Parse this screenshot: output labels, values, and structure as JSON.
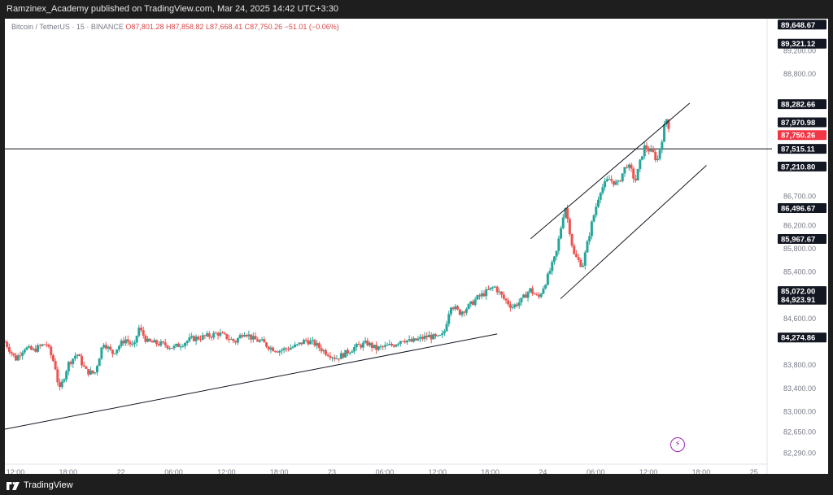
{
  "header": {
    "attribution": "Ramzinex_Academy published on TradingView.com, Mar 24, 2025 14:42 UTC+3:30"
  },
  "footer": {
    "brand": "TradingView",
    "logo_icon": "tradingview-logo-icon"
  },
  "symbol": {
    "name": "Bitcoin / TetherUS · 15 · BINANCE",
    "open": "O87,801.28",
    "high": "H87,858.82",
    "low": "L87,668.41",
    "close": "C87,750.26",
    "change": "−51.01 (−0.06%)"
  },
  "bolt_icon": "lightning-icon",
  "colors": {
    "up": "#26a69a",
    "down": "#ef5350",
    "last_price": "#f23645",
    "label_bg": "#131722",
    "text": "#787b86"
  },
  "chart_data": {
    "type": "candlestick",
    "symbol": "BTCUSDT",
    "timeframe": "15",
    "exchange": "BINANCE",
    "x_ticks": [
      "12:00",
      "18:00",
      "22",
      "06:00",
      "12:00",
      "18:00",
      "23",
      "06:00",
      "12:00",
      "18:00",
      "24",
      "06:00",
      "12:00",
      "18:00",
      "25"
    ],
    "x_tick_hours": [
      12,
      18,
      24,
      30,
      36,
      42,
      48,
      54,
      60,
      66,
      72,
      78,
      84,
      90,
      96
    ],
    "y_ticks": [
      82290,
      82650,
      83000,
      83400,
      83800,
      84600,
      85400,
      85800,
      86200,
      86700,
      88800,
      89200
    ],
    "price_labels": [
      {
        "value": 89648.67,
        "text": "89,648.67"
      },
      {
        "value": 89321.12,
        "text": "89,321.12"
      },
      {
        "value": 88282.66,
        "text": "88,282.66"
      },
      {
        "value": 87970.98,
        "text": "87,970.98"
      },
      {
        "value": 87750.26,
        "text": "87,750.26",
        "last": true
      },
      {
        "value": 87515.11,
        "text": "87,515.11"
      },
      {
        "value": 87210.8,
        "text": "87,210.80"
      },
      {
        "value": 86496.67,
        "text": "86,496.67"
      },
      {
        "value": 85967.67,
        "text": "85,967.67"
      },
      {
        "value": 85072.0,
        "text": "85,072.00"
      },
      {
        "value": 84923.91,
        "text": "84,923.91"
      },
      {
        "value": 84274.86,
        "text": "84,274.86"
      }
    ],
    "ylim": [
      82100,
      89750
    ],
    "xlim_hours": [
      10.8,
      97.5
    ],
    "horizontal_line": 87515.11,
    "trendlines": [
      {
        "name": "support",
        "from": [
          10.8,
          82700
        ],
        "to": [
          66.8,
          84335
        ]
      },
      {
        "name": "channel-upper",
        "from": [
          70.6,
          85970
        ],
        "to": [
          88.7,
          88300
        ]
      },
      {
        "name": "channel-lower",
        "from": [
          74.0,
          84940
        ],
        "to": [
          90.6,
          87230
        ]
      }
    ],
    "price_path": [
      [
        10.8,
        84200
      ],
      [
        12,
        83900
      ],
      [
        13,
        84100
      ],
      [
        14,
        84050
      ],
      [
        15.5,
        84180
      ],
      [
        16.5,
        83800
      ],
      [
        17,
        83350
      ],
      [
        18,
        83820
      ],
      [
        19,
        84000
      ],
      [
        20,
        83700
      ],
      [
        21,
        83650
      ],
      [
        22,
        84200
      ],
      [
        23,
        84000
      ],
      [
        24.5,
        84250
      ],
      [
        25.5,
        84100
      ],
      [
        26,
        84450
      ],
      [
        27,
        84200
      ],
      [
        29,
        84150
      ],
      [
        30,
        84100
      ],
      [
        32,
        84250
      ],
      [
        34,
        84300
      ],
      [
        35,
        84350
      ],
      [
        36,
        84280
      ],
      [
        37,
        84200
      ],
      [
        38,
        84380
      ],
      [
        39,
        84250
      ],
      [
        40,
        84200
      ],
      [
        41,
        84100
      ],
      [
        42,
        84050
      ],
      [
        44,
        84130
      ],
      [
        45,
        84230
      ],
      [
        46,
        84170
      ],
      [
        47,
        84050
      ],
      [
        48.5,
        83920
      ],
      [
        49.5,
        84000
      ],
      [
        50.5,
        84100
      ],
      [
        52,
        84180
      ],
      [
        53,
        84080
      ],
      [
        55,
        84150
      ],
      [
        56,
        84250
      ],
      [
        57,
        84200
      ],
      [
        59,
        84300
      ],
      [
        60,
        84260
      ],
      [
        60.7,
        84320
      ],
      [
        61.5,
        84850
      ],
      [
        62.5,
        84700
      ],
      [
        63.5,
        84800
      ],
      [
        64.5,
        84950
      ],
      [
        65.5,
        85050
      ],
      [
        66.5,
        85150
      ],
      [
        67.5,
        84950
      ],
      [
        68.5,
        84800
      ],
      [
        69.5,
        84900
      ],
      [
        70.5,
        85100
      ],
      [
        71.5,
        84950
      ],
      [
        72.5,
        85300
      ],
      [
        73.5,
        85700
      ],
      [
        74.5,
        86550
      ],
      [
        75,
        86150
      ],
      [
        75.5,
        85700
      ],
      [
        76.5,
        85500
      ],
      [
        77.5,
        86200
      ],
      [
        78.5,
        86800
      ],
      [
        79.5,
        87000
      ],
      [
        80.5,
        86900
      ],
      [
        81.5,
        87250
      ],
      [
        82,
        87150
      ],
      [
        82.5,
        86950
      ],
      [
        83.5,
        87550
      ],
      [
        84.5,
        87450
      ],
      [
        85,
        87300
      ],
      [
        85.5,
        87650
      ],
      [
        86,
        88050
      ],
      [
        86.5,
        87800
      ]
    ]
  }
}
